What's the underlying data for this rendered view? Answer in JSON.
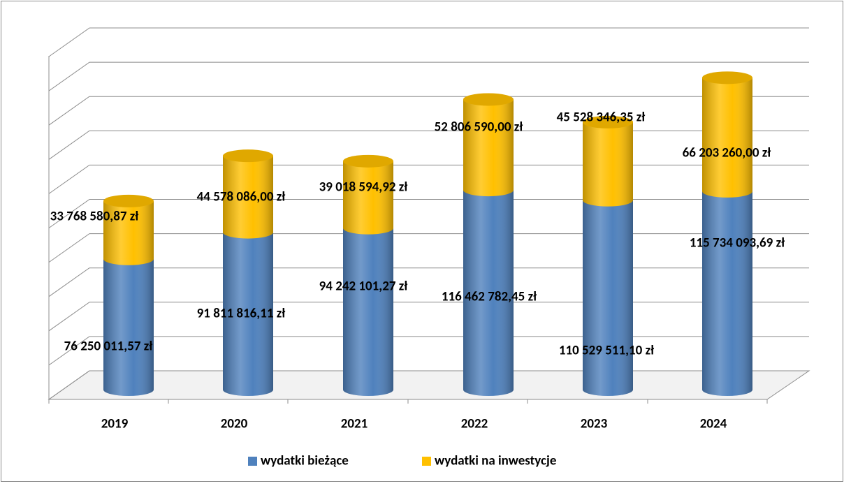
{
  "chart_data": {
    "type": "bar3d_stacked",
    "categories": [
      "2019",
      "2020",
      "2021",
      "2022",
      "2023",
      "2024"
    ],
    "series": [
      {
        "name": "wydatki bieżące",
        "color": "#4f81bd",
        "values": [
          76250011.57,
          91811816.11,
          94242101.27,
          116462782.45,
          110529511.1,
          115734093.69
        ],
        "value_labels": [
          "76 250 011,57 zł",
          "91 811 816,11 zł",
          "94 242 101,27 zł",
          "116 462 782,45 zł",
          "110 529 511,10 zł",
          "115 734 093,69 zł"
        ]
      },
      {
        "name": "wydatki na inwestycje",
        "color": "#ffc000",
        "values": [
          33768580.87,
          44578086.0,
          39018594.92,
          52806590.0,
          45528346.35,
          66203260.0
        ],
        "value_labels": [
          "33 768 580,87 zł",
          "44 578 086,00 zł",
          "39 018 594,92 zł",
          "52 806 590,00 zł",
          "45 528 346,35 zł",
          "66 203 260,00 zł"
        ]
      }
    ],
    "ylim": [
      0,
      200000000
    ],
    "yticks": [
      0,
      20000000,
      40000000,
      60000000,
      80000000,
      100000000,
      120000000,
      140000000,
      160000000,
      180000000,
      200000000
    ],
    "grid": true,
    "legend": "bottom"
  }
}
